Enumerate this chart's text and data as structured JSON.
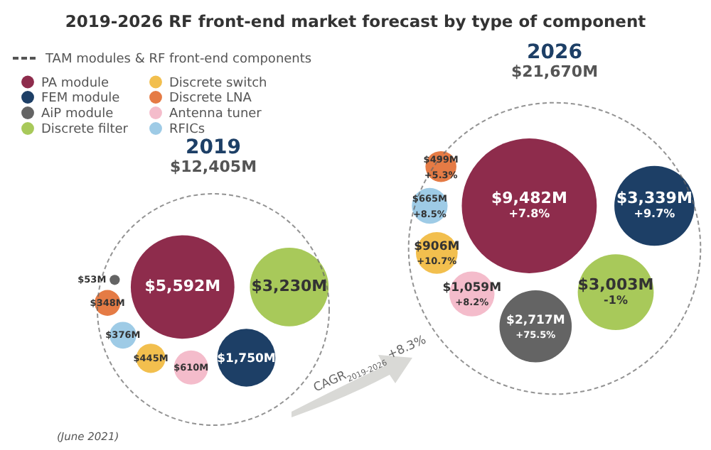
{
  "chart_data": {
    "type": "other",
    "title": "2019-2026 RF front-end market forecast by type of component",
    "categories": [
      "2019",
      "2026"
    ],
    "totals": [
      "$12,405M",
      "$21,670M"
    ],
    "legend": "top left",
    "annotations": [
      "TAM modules & RF front-end components",
      "CAGR$_{2019-2026}$ +8.3%",
      "(June 2021)",
      "+7.8%",
      "+9.7%",
      "+75.5%",
      "-1%",
      "+10.7%",
      "+5.3%",
      "+8.2%",
      "+8.5%"
    ],
    "series": [
      {
        "name": "PA module",
        "color": "#8e2c4c",
        "values": [
          5592,
          9482
        ],
        "value_labels": [
          "$5,592M",
          "$9,482M"
        ]
      },
      {
        "name": "FEM module",
        "color": "#1d3f66",
        "values": [
          1750,
          3339
        ],
        "value_labels": [
          "$1,750M",
          "$3,339M"
        ]
      },
      {
        "name": "AiP module",
        "color": "#646464",
        "values": [
          53,
          2717
        ],
        "value_labels": [
          "$53M",
          "$2,717M"
        ]
      },
      {
        "name": "Discrete filter",
        "color": "#a8c95a",
        "values": [
          3230,
          3003
        ],
        "value_labels": [
          "$3,230M",
          "$3,003M"
        ]
      },
      {
        "name": "Discrete switch",
        "color": "#f2bf4e",
        "values": [
          445,
          906
        ],
        "value_labels": [
          "$445M",
          "$906M"
        ]
      },
      {
        "name": "Discrete LNA",
        "color": "#e57b45",
        "values": [
          348,
          499
        ],
        "value_labels": [
          "$348M",
          "$499M"
        ]
      },
      {
        "name": "Antenna tuner",
        "color": "#f4bccb",
        "values": [
          610,
          1059
        ],
        "value_labels": [
          "$610M",
          "$1,059M"
        ]
      },
      {
        "name": "RFICs",
        "color": "#9ecbe6",
        "values": [
          376,
          665
        ],
        "value_labels": [
          "$376M",
          "$665M"
        ]
      }
    ]
  }
}
